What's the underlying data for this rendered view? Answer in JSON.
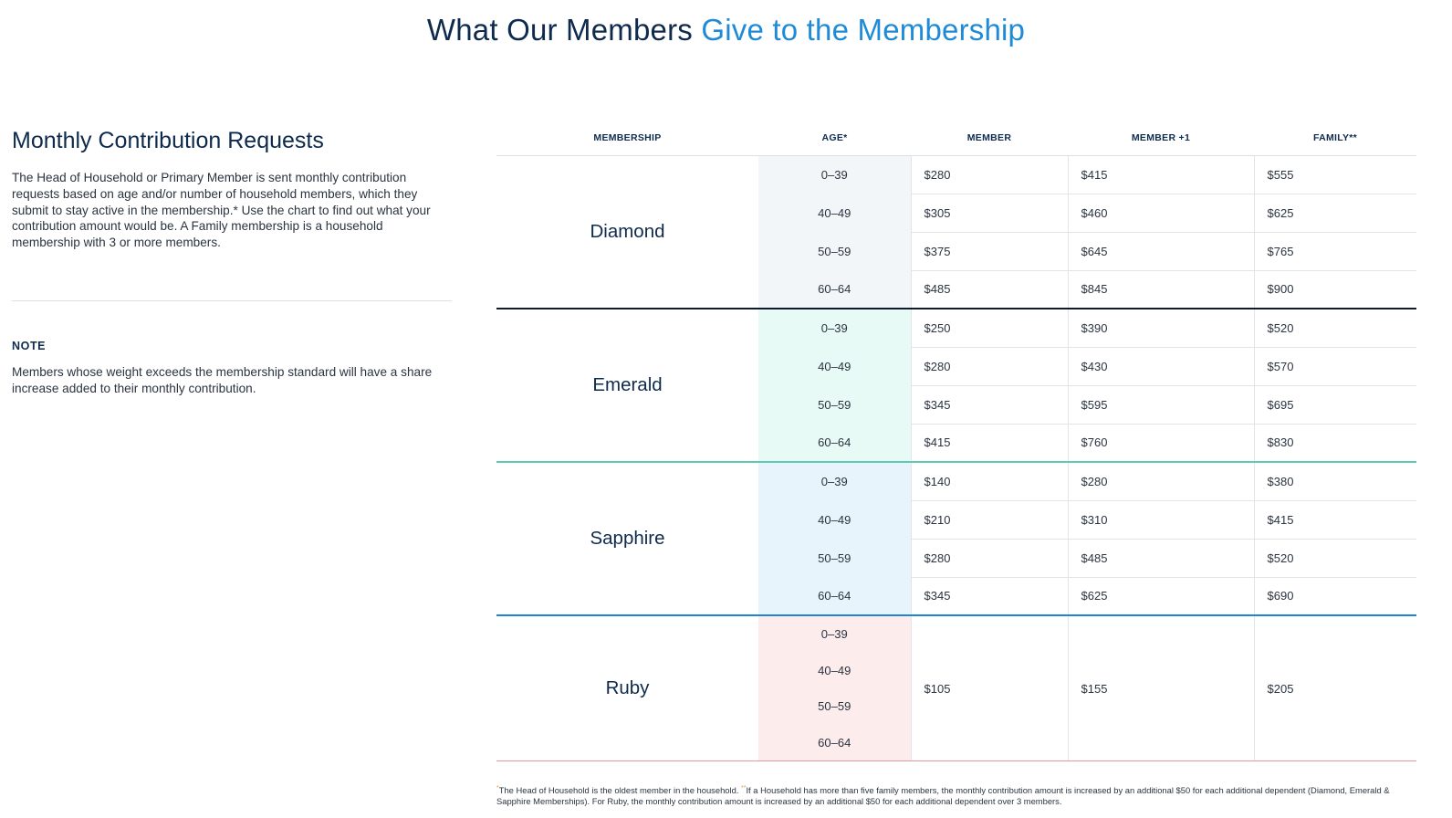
{
  "title": {
    "main": "What Our Members",
    "accent": "Give to the Membership"
  },
  "left": {
    "heading": "Monthly Contribution Requests",
    "intro": "The Head of Household or Primary Member is sent monthly contribution requests based on age and/or number of household members, which they submit to stay active in the membership.* Use the chart to find out what your contribution amount would be. A Family membership is a household membership with 3 or more members.",
    "note_label": "NOTE",
    "note_text": "Members whose weight exceeds the membership standard will have a share increase added to their monthly contribution."
  },
  "table": {
    "headers": [
      "MEMBERSHIP",
      "AGE*",
      "MEMBER",
      "MEMBER +1",
      "FAMILY**"
    ],
    "tiers": [
      {
        "name": "Diamond",
        "rows": [
          {
            "age": "0–39",
            "member": "$280",
            "member_plus1": "$415",
            "family": "$555"
          },
          {
            "age": "40–49",
            "member": "$305",
            "member_plus1": "$460",
            "family": "$625"
          },
          {
            "age": "50–59",
            "member": "$375",
            "member_plus1": "$645",
            "family": "$765"
          },
          {
            "age": "60–64",
            "member": "$485",
            "member_plus1": "$845",
            "family": "$900"
          }
        ]
      },
      {
        "name": "Emerald",
        "rows": [
          {
            "age": "0–39",
            "member": "$250",
            "member_plus1": "$390",
            "family": "$520"
          },
          {
            "age": "40–49",
            "member": "$280",
            "member_plus1": "$430",
            "family": "$570"
          },
          {
            "age": "50–59",
            "member": "$345",
            "member_plus1": "$595",
            "family": "$695"
          },
          {
            "age": "60–64",
            "member": "$415",
            "member_plus1": "$760",
            "family": "$830"
          }
        ]
      },
      {
        "name": "Sapphire",
        "rows": [
          {
            "age": "0–39",
            "member": "$140",
            "member_plus1": "$280",
            "family": "$380"
          },
          {
            "age": "40–49",
            "member": "$210",
            "member_plus1": "$310",
            "family": "$415"
          },
          {
            "age": "50–59",
            "member": "$280",
            "member_plus1": "$485",
            "family": "$520"
          },
          {
            "age": "60–64",
            "member": "$345",
            "member_plus1": "$625",
            "family": "$690"
          }
        ]
      },
      {
        "name": "Ruby",
        "ages": [
          "0–39",
          "40–49",
          "50–59",
          "60–64"
        ],
        "member": "$105",
        "member_plus1": "$155",
        "family": "$205"
      }
    ]
  },
  "footnote": {
    "mark1": "*",
    "text1": "The Head of Household is the oldest member in the household. ",
    "mark2": "**",
    "text2": "If a Household has more than five family members, the monthly contribution amount is increased by an additional $50 for each additional dependent (Diamond, Emerald & Sapphire Memberships). For Ruby, the monthly contribution amount is increased by an additional $50 for each additional dependent over 3 members."
  },
  "colors": {
    "title_dark": "#0e2a4d",
    "title_accent": "#1f8bd6",
    "diamond_bg": "#f3f6f9",
    "emerald_bg": "#e8faf5",
    "sapphire_bg": "#e8f4fc",
    "ruby_bg": "#fdecec"
  }
}
